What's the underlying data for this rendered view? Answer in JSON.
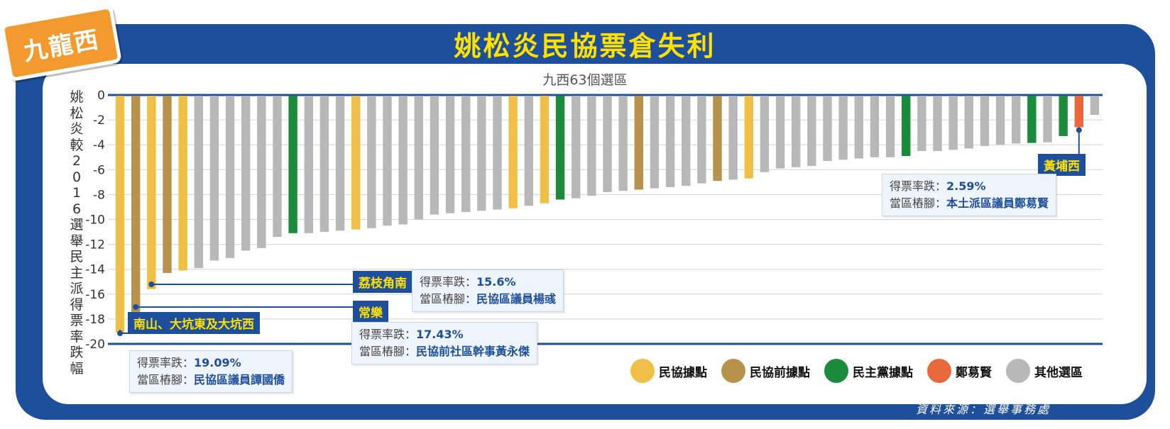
{
  "badge": "九龍西",
  "title": "姚松炎民協票倉失利",
  "source": "資料來源：選舉事務處",
  "colors": {
    "frame": "#1e4f9c",
    "民協": "#f0bf45",
    "民協前": "#b8924a",
    "民主黨": "#1a8c3c",
    "鄭泳賢": "#e8683a",
    "其他": "#b8b8b8"
  },
  "legend": [
    {
      "label": "民協據點",
      "key": "民協"
    },
    {
      "label": "民協前據點",
      "key": "民協前"
    },
    {
      "label": "民主黨據點",
      "key": "民主黨"
    },
    {
      "label": "鄭䓪賢",
      "key": "鄭泳賢"
    },
    {
      "label": "其他選區",
      "key": "其他"
    }
  ],
  "callouts": [
    {
      "name": "南山、大坑東及大坑西",
      "drop_label": "得票率跌：",
      "drop": "19.09%",
      "rep_label": "當區樁腳：",
      "rep": "民協區議員譚國僑"
    },
    {
      "name": "常樂",
      "drop_label": "得票率跌：",
      "drop": "17.43%",
      "rep_label": "當區樁腳：",
      "rep": "民協前社區幹事黃永傑"
    },
    {
      "name": "荔枝角南",
      "drop_label": "得票率跌：",
      "drop": "15.6%",
      "rep_label": "當區樁腳：",
      "rep": "民協區議員楊彧"
    },
    {
      "name": "黃埔西",
      "drop_label": "得票率跌：",
      "drop": "2.59%",
      "rep_label": "當區樁腳：",
      "rep": "本土派區議員鄭䓪賢"
    }
  ],
  "chart_data": {
    "type": "bar",
    "title": "九西63個選區",
    "ylabel": "姚松炎較2016選舉民主派得票率跌幅",
    "ylim": [
      -20,
      0
    ],
    "yticks": [
      0,
      -2,
      -4,
      -6,
      -8,
      -10,
      -12,
      -14,
      -16,
      -18,
      -20
    ],
    "grid": true,
    "legend_position": "bottom-right",
    "values": [
      -19.09,
      -17.43,
      -15.6,
      -14.3,
      -14.1,
      -13.9,
      -13.3,
      -13.1,
      -12.5,
      -12.3,
      -11.4,
      -11.1,
      -11.1,
      -11.0,
      -10.9,
      -10.8,
      -10.7,
      -10.5,
      -10.4,
      -10.0,
      -9.6,
      -9.5,
      -9.4,
      -9.3,
      -9.2,
      -9.1,
      -8.9,
      -8.7,
      -8.4,
      -8.3,
      -8.1,
      -7.8,
      -7.7,
      -7.6,
      -7.5,
      -7.4,
      -7.3,
      -7.1,
      -6.9,
      -6.8,
      -6.7,
      -6.2,
      -5.9,
      -5.8,
      -5.7,
      -5.3,
      -5.2,
      -5.1,
      -5.0,
      -5.0,
      -4.9,
      -4.5,
      -4.5,
      -4.4,
      -4.3,
      -4.1,
      -4.0,
      -3.9,
      -3.85,
      -3.8,
      -3.3,
      -2.59,
      -1.6
    ],
    "groups": [
      "民協",
      "民協前",
      "民協",
      "民協前",
      "民協",
      "其他",
      "其他",
      "其他",
      "其他",
      "其他",
      "其他",
      "民主黨",
      "其他",
      "其他",
      "其他",
      "民協",
      "其他",
      "其他",
      "其他",
      "其他",
      "其他",
      "其他",
      "其他",
      "其他",
      "其他",
      "民協",
      "其他",
      "民協",
      "民主黨",
      "其他",
      "其他",
      "其他",
      "其他",
      "民協前",
      "其他",
      "其他",
      "其他",
      "其他",
      "民協前",
      "其他",
      "民協",
      "其他",
      "其他",
      "其他",
      "其他",
      "其他",
      "其他",
      "其他",
      "其他",
      "其他",
      "民主黨",
      "其他",
      "其他",
      "其他",
      "其他",
      "其他",
      "其他",
      "其他",
      "民主黨",
      "其他",
      "民主黨",
      "鄭泳賢",
      "其他"
    ]
  }
}
